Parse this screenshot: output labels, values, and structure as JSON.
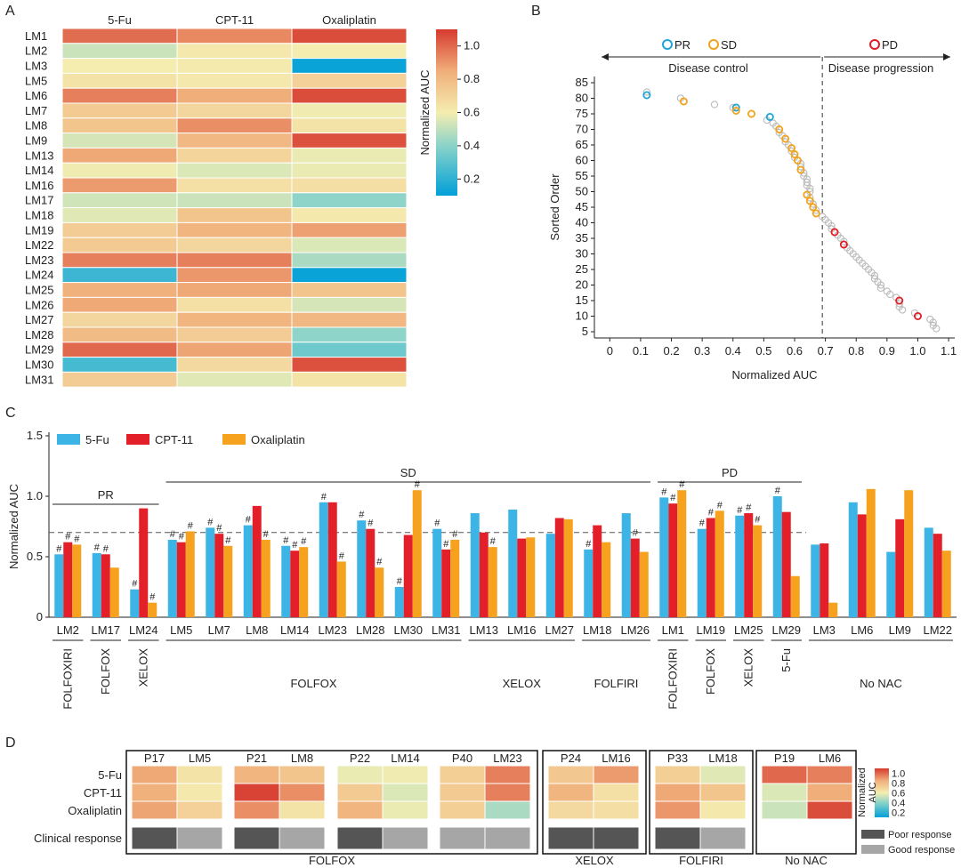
{
  "panel_labels": [
    "A",
    "B",
    "C",
    "D"
  ],
  "chart_data": [
    {
      "panel": "A",
      "type": "heatmap",
      "columns": [
        "5-Fu",
        "CPT-11",
        "Oxaliplatin"
      ],
      "rows": [
        "LM1",
        "LM2",
        "LM3",
        "LM5",
        "LM6",
        "LM7",
        "LM8",
        "LM9",
        "LM13",
        "LM14",
        "LM16",
        "LM17",
        "LM18",
        "LM19",
        "LM22",
        "LM23",
        "LM24",
        "LM25",
        "LM26",
        "LM27",
        "LM28",
        "LM29",
        "LM30",
        "LM31"
      ],
      "values": [
        [
          0.99,
          0.93,
          1.06
        ],
        [
          0.52,
          0.62,
          0.6
        ],
        [
          0.6,
          0.61,
          0.12
        ],
        [
          0.64,
          0.62,
          0.71
        ],
        [
          0.95,
          0.85,
          1.06
        ],
        [
          0.74,
          0.69,
          0.59
        ],
        [
          0.76,
          0.92,
          0.64
        ],
        [
          0.54,
          0.81,
          1.05
        ],
        [
          0.86,
          0.7,
          0.58
        ],
        [
          0.59,
          0.55,
          0.58
        ],
        [
          0.89,
          0.65,
          0.66
        ],
        [
          0.53,
          0.52,
          0.41
        ],
        [
          0.56,
          0.76,
          0.62
        ],
        [
          0.73,
          0.82,
          0.88
        ],
        [
          0.74,
          0.69,
          0.55
        ],
        [
          0.95,
          0.95,
          0.46
        ],
        [
          0.23,
          0.9,
          0.12
        ],
        [
          0.84,
          0.86,
          0.76
        ],
        [
          0.86,
          0.65,
          0.54
        ],
        [
          0.69,
          0.82,
          0.81
        ],
        [
          0.8,
          0.73,
          0.41
        ],
        [
          1.0,
          0.87,
          0.34
        ],
        [
          0.25,
          0.68,
          1.05
        ],
        [
          0.73,
          0.56,
          0.64
        ]
      ],
      "colorbar": {
        "label": "Normalized AUC",
        "min": 0.1,
        "max": 1.1,
        "ticks": [
          "1.0",
          "0.8",
          "0.6",
          "0.4",
          "0.2"
        ]
      }
    },
    {
      "panel": "B",
      "type": "scatter",
      "xlabel": "Normalized AUC",
      "ylabel": "Sorted Order",
      "xlim": [
        -0.05,
        1.12
      ],
      "ylim": [
        3,
        87
      ],
      "x_ticks": [
        "0",
        "0.1",
        "0.2",
        "0.3",
        "0.4",
        "0.5",
        "0.6",
        "0.7",
        "0.8",
        "0.9",
        "1.0",
        "1.1"
      ],
      "y_ticks": [
        "5",
        "10",
        "15",
        "20",
        "25",
        "30",
        "35",
        "40",
        "45",
        "50",
        "55",
        "60",
        "65",
        "70",
        "75",
        "80",
        "85"
      ],
      "threshold_x": 0.69,
      "legend": [
        "PR",
        "SD",
        "PD"
      ],
      "annotations": [
        "Disease control",
        "Disease progression"
      ],
      "series": [
        {
          "name": "PR",
          "color": "#1ea6d6",
          "points": [
            [
              0.12,
              81
            ],
            [
              0.41,
              77
            ],
            [
              0.52,
              74
            ]
          ]
        },
        {
          "name": "SD",
          "color": "#f2a31b",
          "points": [
            [
              0.24,
              79
            ],
            [
              0.41,
              76
            ],
            [
              0.46,
              75
            ],
            [
              0.55,
              70
            ],
            [
              0.57,
              67
            ],
            [
              0.59,
              64
            ],
            [
              0.6,
              62
            ],
            [
              0.61,
              60
            ],
            [
              0.62,
              57
            ],
            [
              0.64,
              49
            ],
            [
              0.65,
              47
            ],
            [
              0.66,
              45
            ],
            [
              0.67,
              43
            ]
          ]
        },
        {
          "name": "PD",
          "color": "#e11d25",
          "points": [
            [
              0.73,
              37
            ],
            [
              0.76,
              33
            ],
            [
              0.94,
              15
            ],
            [
              1.0,
              10
            ]
          ]
        },
        {
          "name": "",
          "color": "#bbbbbb",
          "points": [
            [
              0.12,
              82
            ],
            [
              0.23,
              80
            ],
            [
              0.34,
              78
            ],
            [
              0.4,
              77
            ],
            [
              0.51,
              73
            ],
            [
              0.53,
              72
            ],
            [
              0.54,
              71
            ],
            [
              0.55,
              69
            ],
            [
              0.56,
              68
            ],
            [
              0.57,
              66
            ],
            [
              0.58,
              65
            ],
            [
              0.59,
              63
            ],
            [
              0.6,
              61
            ],
            [
              0.62,
              59
            ],
            [
              0.62,
              58
            ],
            [
              0.63,
              56
            ],
            [
              0.63,
              55
            ],
            [
              0.64,
              54
            ],
            [
              0.64,
              53
            ],
            [
              0.64,
              52
            ],
            [
              0.65,
              51
            ],
            [
              0.65,
              50
            ],
            [
              0.65,
              48
            ],
            [
              0.66,
              46
            ],
            [
              0.67,
              44
            ],
            [
              0.69,
              42
            ],
            [
              0.7,
              41
            ],
            [
              0.71,
              40
            ],
            [
              0.72,
              39
            ],
            [
              0.72,
              38
            ],
            [
              0.74,
              36
            ],
            [
              0.75,
              35
            ],
            [
              0.76,
              34
            ],
            [
              0.77,
              32
            ],
            [
              0.78,
              31
            ],
            [
              0.79,
              30
            ],
            [
              0.8,
              29
            ],
            [
              0.81,
              28
            ],
            [
              0.82,
              27
            ],
            [
              0.83,
              26
            ],
            [
              0.84,
              25
            ],
            [
              0.85,
              24
            ],
            [
              0.86,
              23
            ],
            [
              0.86,
              22
            ],
            [
              0.87,
              21
            ],
            [
              0.88,
              20
            ],
            [
              0.88,
              19
            ],
            [
              0.9,
              18
            ],
            [
              0.91,
              17
            ],
            [
              0.93,
              16
            ],
            [
              0.94,
              14
            ],
            [
              0.94,
              13
            ],
            [
              0.95,
              12
            ],
            [
              0.99,
              11
            ],
            [
              1.04,
              9
            ],
            [
              1.05,
              8
            ],
            [
              1.05,
              7
            ],
            [
              1.06,
              6
            ]
          ]
        }
      ]
    },
    {
      "panel": "C",
      "type": "bar",
      "ylabel": "Normalized AUC",
      "ylim": [
        0,
        1.5
      ],
      "y_ticks": [
        "0",
        "0.5",
        "1.0",
        "1.5"
      ],
      "threshold": 0.7,
      "categories": [
        "LM2",
        "LM17",
        "LM24",
        "LM5",
        "LM7",
        "LM8",
        "LM14",
        "LM23",
        "LM28",
        "LM30",
        "LM31",
        "LM13",
        "LM16",
        "LM27",
        "LM18",
        "LM26",
        "LM1",
        "LM19",
        "LM25",
        "LM29",
        "LM3",
        "LM6",
        "LM9",
        "LM22"
      ],
      "series": [
        {
          "name": "5-Fu",
          "color": "#3db4e6",
          "values": [
            0.52,
            0.53,
            0.23,
            0.64,
            0.74,
            0.76,
            0.59,
            0.95,
            0.8,
            0.25,
            0.73,
            0.86,
            0.89,
            0.69,
            0.56,
            0.86,
            0.99,
            0.73,
            0.84,
            1.0,
            0.6,
            0.95,
            0.54,
            0.74
          ]
        },
        {
          "name": "CPT-11",
          "color": "#e3202a",
          "values": [
            0.62,
            0.52,
            0.9,
            0.62,
            0.69,
            0.92,
            0.55,
            0.95,
            0.73,
            0.68,
            0.56,
            0.7,
            0.65,
            0.82,
            0.76,
            0.65,
            0.94,
            0.82,
            0.86,
            0.87,
            0.61,
            0.85,
            0.81,
            0.69
          ]
        },
        {
          "name": "Oxaliplatin",
          "color": "#f6a21f",
          "values": [
            0.6,
            0.41,
            0.12,
            0.71,
            0.59,
            0.64,
            0.58,
            0.46,
            0.41,
            1.05,
            0.64,
            0.58,
            0.66,
            0.81,
            0.62,
            0.54,
            1.05,
            0.88,
            0.76,
            0.34,
            0.12,
            1.06,
            1.05,
            0.55
          ]
        }
      ],
      "marked": [
        [
          1,
          1,
          1
        ],
        [
          1,
          1,
          0
        ],
        [
          1,
          0,
          1
        ],
        [
          1,
          1,
          1
        ],
        [
          1,
          1,
          1
        ],
        [
          1,
          0,
          1
        ],
        [
          1,
          1,
          1
        ],
        [
          1,
          0,
          1
        ],
        [
          1,
          1,
          1
        ],
        [
          1,
          0,
          1
        ],
        [
          1,
          1,
          1
        ],
        [
          0,
          0,
          1
        ],
        [
          0,
          0,
          0
        ],
        [
          0,
          0,
          0
        ],
        [
          1,
          0,
          0
        ],
        [
          0,
          1,
          0
        ],
        [
          1,
          1,
          1
        ],
        [
          1,
          1,
          1
        ],
        [
          1,
          1,
          1
        ],
        [
          1,
          0,
          0
        ],
        [
          0,
          0,
          0
        ],
        [
          0,
          0,
          0
        ],
        [
          0,
          0,
          0
        ],
        [
          0,
          0,
          0
        ]
      ],
      "mark_symbol": "#",
      "response_groups": [
        {
          "label": "PR",
          "from": 0,
          "to": 2
        },
        {
          "label": "SD",
          "from": 3,
          "to": 15
        },
        {
          "label": "PD",
          "from": 16,
          "to": 19
        }
      ],
      "regimen_groups": [
        {
          "label": "FOLFOXIRI",
          "from": 0,
          "to": 0
        },
        {
          "label": "FOLFOX",
          "from": 1,
          "to": 1
        },
        {
          "label": "XELOX",
          "from": 2,
          "to": 2
        },
        {
          "label": "FOLFOX",
          "from": 3,
          "to": 10
        },
        {
          "label": "XELOX",
          "from": 11,
          "to": 13
        },
        {
          "label": "FOLFIRI",
          "from": 14,
          "to": 15
        },
        {
          "label": "FOLFOXIRI",
          "from": 16,
          "to": 16
        },
        {
          "label": "FOLFOX",
          "from": 17,
          "to": 17
        },
        {
          "label": "XELOX",
          "from": 18,
          "to": 18
        },
        {
          "label": "5-Fu",
          "from": 19,
          "to": 19
        },
        {
          "label": "No NAC",
          "from": 20,
          "to": 23
        }
      ]
    },
    {
      "panel": "D",
      "type": "heatmap",
      "rows": [
        "5-Fu",
        "CPT-11",
        "Oxaliplatin"
      ],
      "response_row_label": "Clinical response",
      "colorbar": {
        "label_lines": [
          "Normalized",
          "AUC"
        ],
        "ticks": [
          "1.0",
          "0.8",
          "0.6",
          "0.4",
          "0.2"
        ]
      },
      "legend": [
        {
          "label": "Poor response",
          "color": "#555555"
        },
        {
          "label": "Good response",
          "color": "#a6a6a6"
        }
      ],
      "groups": [
        {
          "label": "FOLFOX",
          "pairs": [
            {
              "cols": [
                "P17",
                "LM5"
              ],
              "values": [
                [
                  0.86,
                  0.64
                ],
                [
                  0.84,
                  0.62
                ],
                [
                  0.87,
                  0.71
                ]
              ],
              "response": [
                "poor",
                "good"
              ]
            },
            {
              "cols": [
                "P21",
                "LM8"
              ],
              "values": [
                [
                  0.82,
                  0.76
                ],
                [
                  1.08,
                  0.92
                ],
                [
                  0.92,
                  0.64
                ]
              ],
              "response": [
                "poor",
                "good"
              ]
            },
            {
              "cols": [
                "P22",
                "LM14"
              ],
              "values": [
                [
                  0.58,
                  0.59
                ],
                [
                  0.74,
                  0.55
                ],
                [
                  0.82,
                  0.58
                ]
              ],
              "response": [
                "poor",
                "good"
              ]
            },
            {
              "cols": [
                "P40",
                "LM23"
              ],
              "values": [
                [
                  0.72,
                  0.95
                ],
                [
                  0.74,
                  0.95
                ],
                [
                  0.72,
                  0.46
                ]
              ],
              "response": [
                "good",
                "good"
              ]
            }
          ]
        },
        {
          "label": "XELOX",
          "pairs": [
            {
              "cols": [
                "P24",
                "LM16"
              ],
              "values": [
                [
                  0.75,
                  0.89
                ],
                [
                  0.82,
                  0.65
                ],
                [
                  0.68,
                  0.66
                ]
              ],
              "response": [
                "poor",
                "poor"
              ]
            }
          ]
        },
        {
          "label": "FOLFIRI",
          "pairs": [
            {
              "cols": [
                "P33",
                "LM18"
              ],
              "values": [
                [
                  0.72,
                  0.56
                ],
                [
                  0.86,
                  0.76
                ],
                [
                  0.9,
                  0.62
                ]
              ],
              "response": [
                "poor",
                "good"
              ]
            }
          ]
        },
        {
          "label": "No NAC",
          "pairs": [
            {
              "cols": [
                "P19",
                "LM6"
              ],
              "values": [
                [
                  1.0,
                  0.95
                ],
                [
                  0.55,
                  0.85
                ],
                [
                  0.52,
                  1.06
                ]
              ],
              "response": [
                "none",
                "none"
              ]
            }
          ]
        }
      ]
    }
  ]
}
